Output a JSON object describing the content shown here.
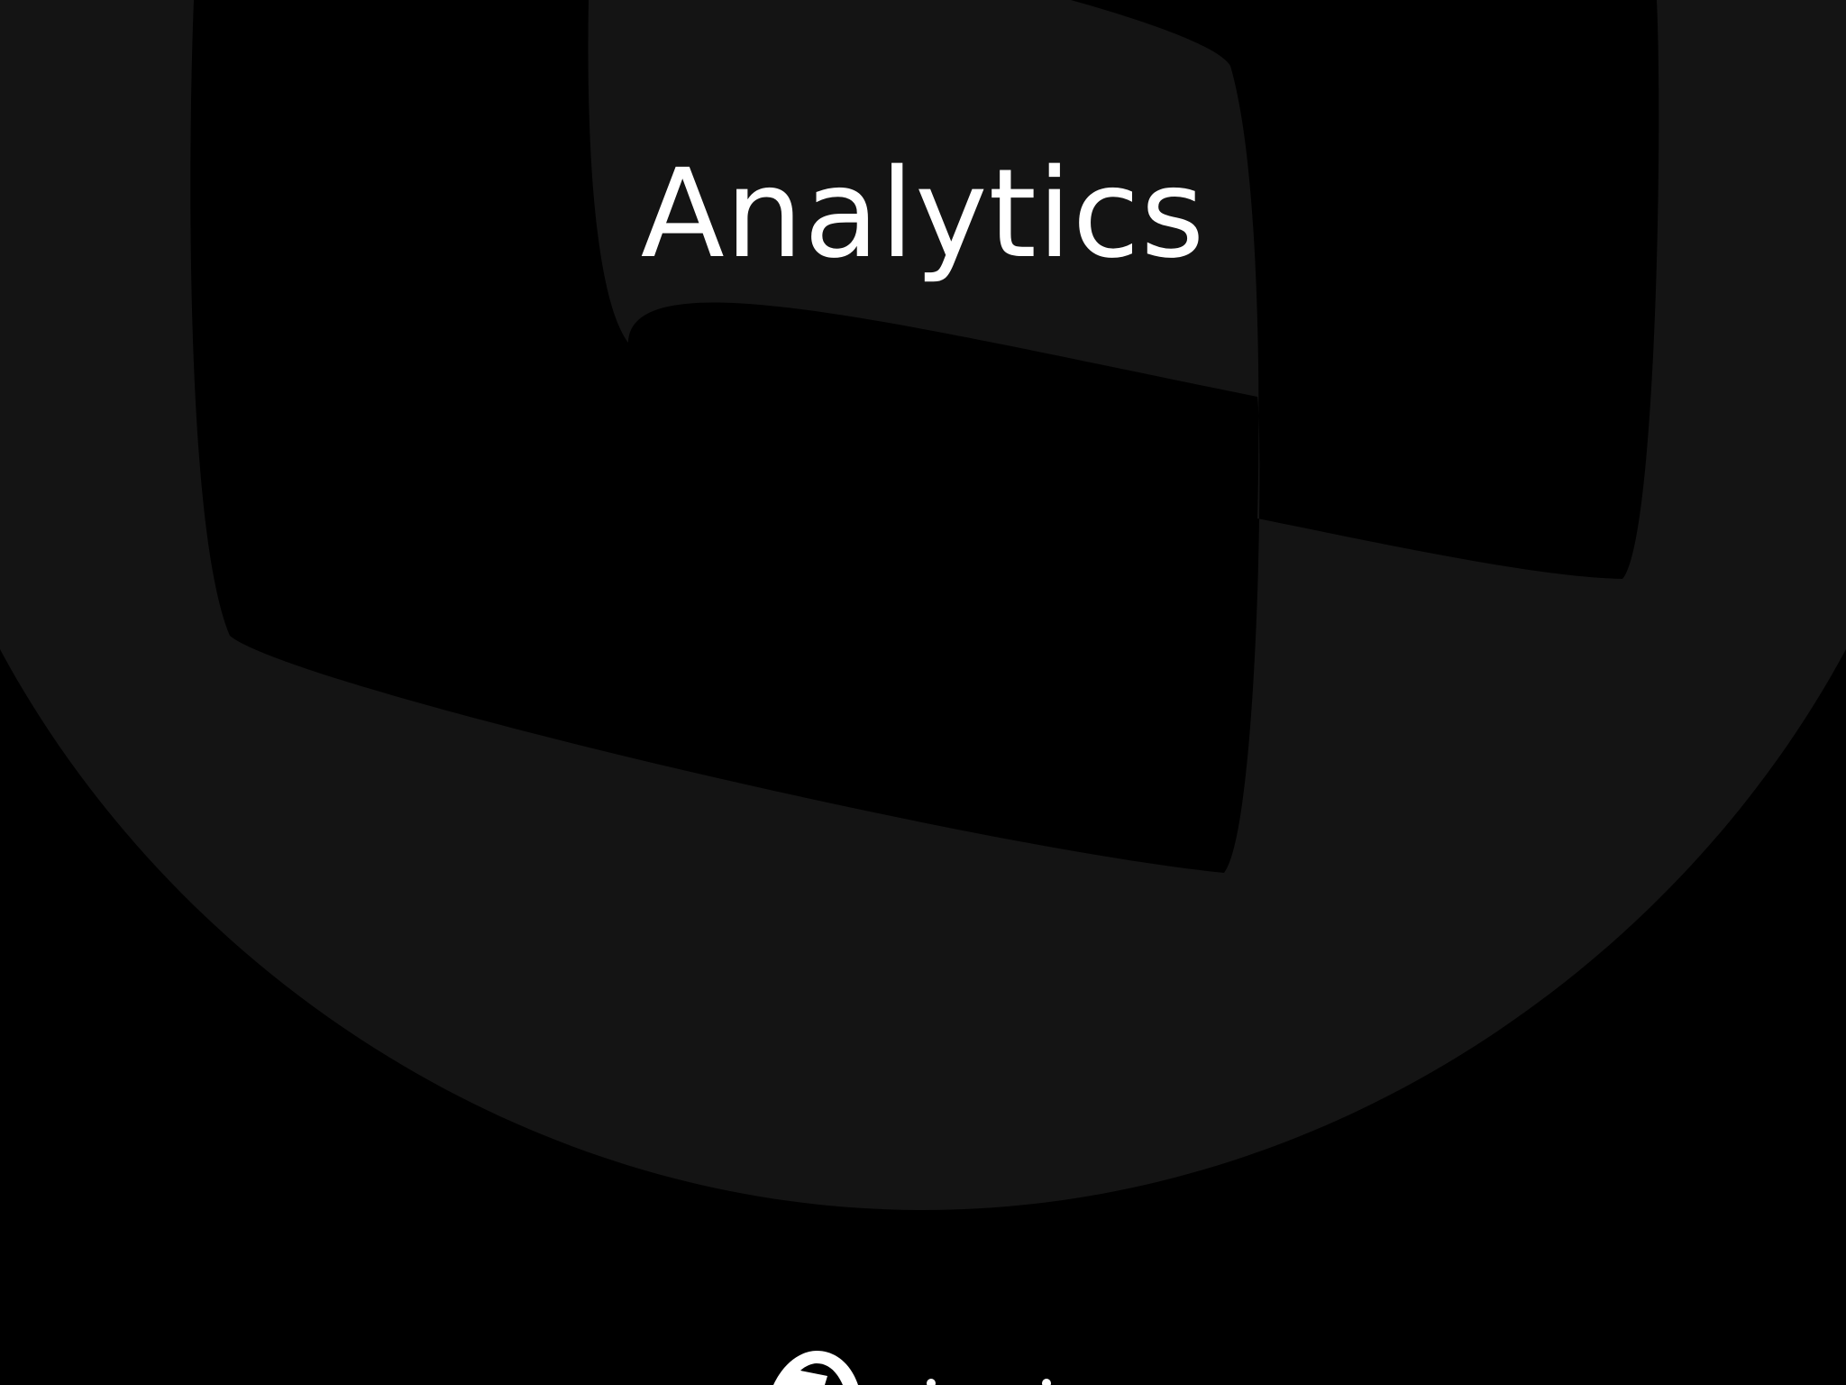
{
  "screen": {
    "title": "Analytics"
  },
  "colors": {
    "background": "#000000",
    "watermark": "#141414",
    "text": "#ffffff"
  },
  "icons": {
    "watermark": "app-logo-watermark",
    "bottom": "app-logo-icon"
  }
}
